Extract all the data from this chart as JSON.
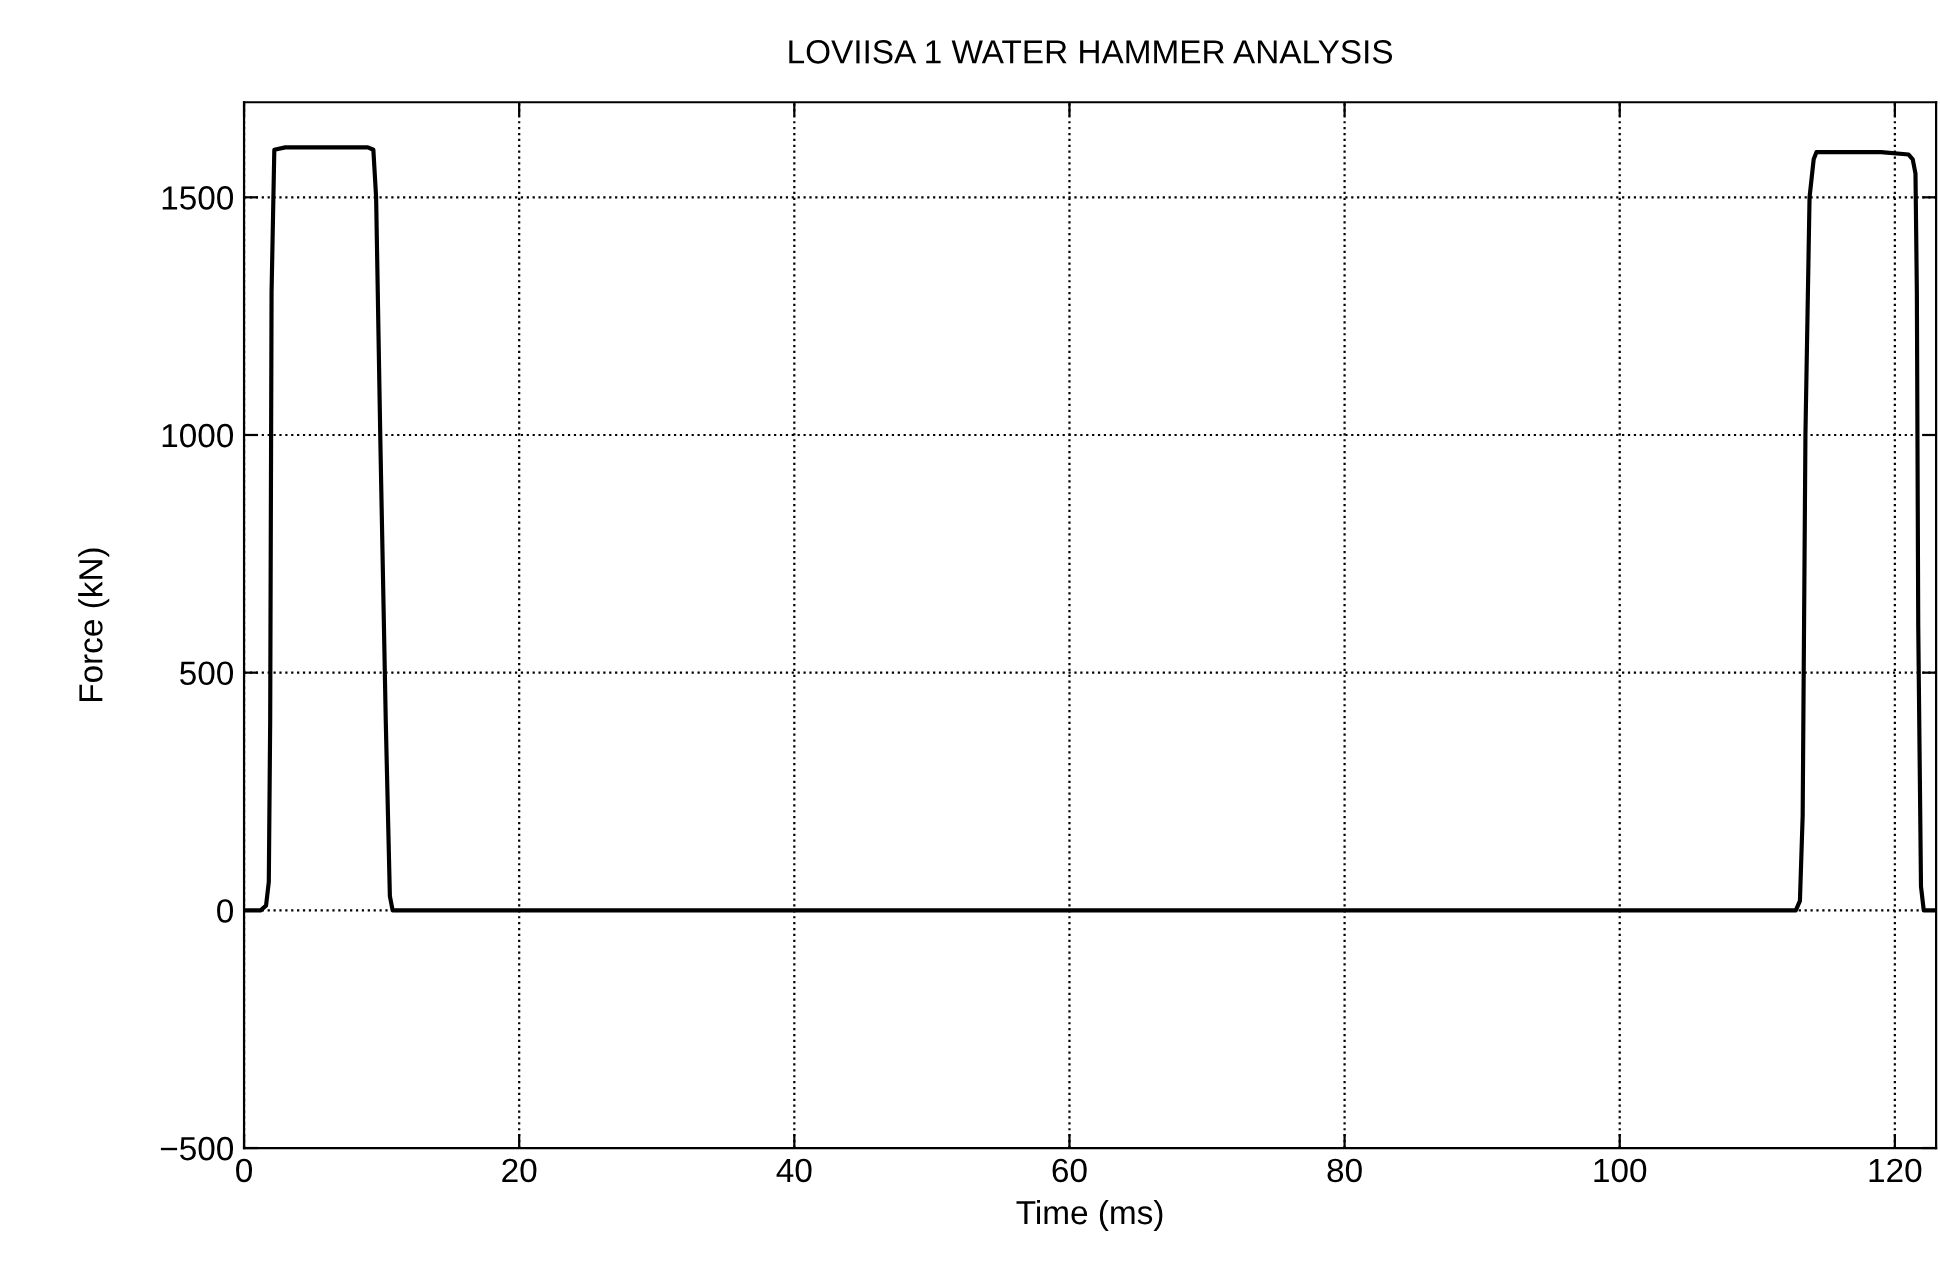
{
  "chart_data": {
    "type": "line",
    "title": "LOVIISA 1 WATER HAMMER ANALYSIS",
    "xlabel": "Time (ms)",
    "ylabel": "Force (kN)",
    "series": [
      {
        "color": "#000000",
        "x": [
          0,
          1.2,
          1.6,
          1.8,
          1.9,
          2.0,
          2.2,
          3,
          6,
          9,
          9.4,
          9.6,
          9.9,
          10.3,
          10.6,
          10.8,
          20,
          40,
          60,
          80,
          100,
          112.8,
          113.1,
          113.3,
          113.5,
          113.8,
          114.1,
          114.3,
          116,
          119,
          121,
          121.3,
          121.5,
          121.6,
          121.7,
          121.9,
          122.1,
          123
        ],
        "values": [
          0,
          0,
          10,
          60,
          400,
          1300,
          1600,
          1605,
          1605,
          1605,
          1600,
          1500,
          1000,
          400,
          30,
          0,
          0,
          0,
          0,
          0,
          0,
          0,
          20,
          200,
          1000,
          1500,
          1580,
          1595,
          1595,
          1595,
          1590,
          1580,
          1550,
          1300,
          600,
          50,
          0,
          0
        ]
      }
    ],
    "xlim": [
      0,
      123
    ],
    "ylim": [
      -500,
      1700
    ],
    "xticks": [
      0,
      20,
      40,
      60,
      80,
      100,
      120
    ],
    "yticks": [
      -500,
      0,
      500,
      1000,
      1500
    ],
    "grid": true,
    "marker": "none",
    "line_style": "solid"
  }
}
